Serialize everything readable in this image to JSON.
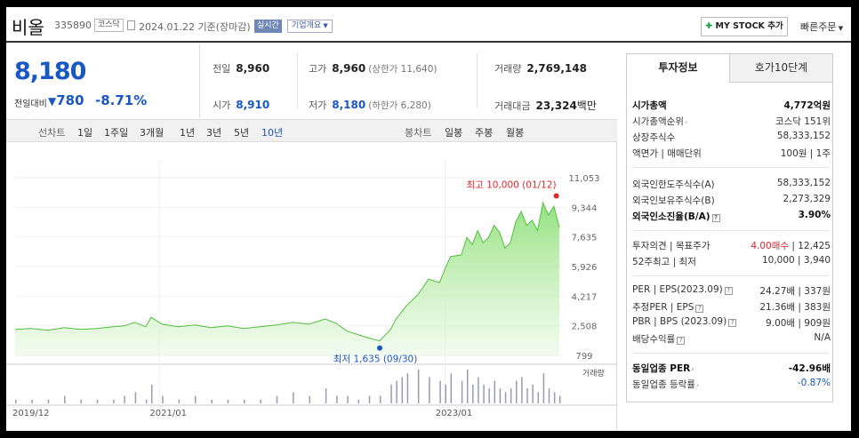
{
  "header": {
    "name": "비올",
    "code": "335890",
    "market_badge": "코스닥",
    "date": "2024.01.22 기준(장마감)",
    "realtime_label": "실시간",
    "company_info_label": "기업개요",
    "my_stock_label": "MY STOCK 추가",
    "quick_order_label": "빠른주문"
  },
  "price": {
    "current": "8,180",
    "vs_label": "전일대비",
    "change": "780",
    "change_pct": "-8.71%"
  },
  "stats": {
    "prev_label": "전일",
    "prev": "8,960",
    "high_label": "고가",
    "high": "8,960",
    "upper_limit": "(상한가 11,640)",
    "volume_label": "거래량",
    "volume": "2,769,148",
    "open_label": "시가",
    "open": "8,910",
    "low_label": "저가",
    "low": "8,180",
    "lower_limit": "(하한가 6,280)",
    "amount_label": "거래대금",
    "amount": "23,324",
    "amount_unit": "백만"
  },
  "period_bar": {
    "line_label": "선차트",
    "periods": [
      "1일",
      "1주일",
      "3개월",
      "1년",
      "3년",
      "5년",
      "10년"
    ],
    "active": "10년",
    "candle_label": "봉차트",
    "candles": [
      "일봉",
      "주봉",
      "월봉"
    ]
  },
  "chart_data": {
    "type": "area",
    "yticks": [
      "11,053",
      "9,344",
      "7,635",
      "5,926",
      "4,217",
      "2,508",
      "799"
    ],
    "ylim": [
      799,
      11053
    ],
    "xticks": [
      "2019/12",
      "2021/01",
      "2023/01"
    ],
    "max_label": "최고 10,000 (01/12)",
    "min_label": "최저 1,635 (09/30)",
    "volume_label": "거래량",
    "x": [
      0,
      0.03,
      0.06,
      0.09,
      0.12,
      0.15,
      0.18,
      0.2,
      0.22,
      0.24,
      0.25,
      0.27,
      0.3,
      0.33,
      0.36,
      0.39,
      0.42,
      0.45,
      0.48,
      0.51,
      0.54,
      0.57,
      0.59,
      0.61,
      0.63,
      0.65,
      0.67,
      0.69,
      0.7,
      0.71,
      0.72,
      0.74,
      0.76,
      0.78,
      0.79,
      0.8,
      0.82,
      0.83,
      0.84,
      0.85,
      0.86,
      0.87,
      0.88,
      0.89,
      0.9,
      0.91,
      0.92,
      0.93,
      0.94,
      0.95,
      0.96,
      0.97,
      0.98,
      0.99,
      1.0
    ],
    "values": [
      2300,
      2350,
      2250,
      2400,
      2300,
      2350,
      2450,
      2500,
      2700,
      2450,
      3000,
      2600,
      2450,
      2550,
      2400,
      2500,
      2350,
      2450,
      2550,
      2700,
      2600,
      2900,
      2650,
      2200,
      2000,
      1800,
      1635,
      2300,
      2900,
      3300,
      3700,
      4300,
      5200,
      5000,
      5800,
      6500,
      6600,
      7600,
      7200,
      8000,
      7300,
      7600,
      8300,
      7900,
      7000,
      7300,
      8500,
      9100,
      8300,
      8600,
      8000,
      9600,
      8900,
      9400,
      8180
    ],
    "volume": [
      1,
      1,
      1,
      2,
      1,
      1,
      1,
      2,
      3,
      1,
      5,
      2,
      1,
      2,
      1,
      1,
      1,
      1,
      2,
      3,
      2,
      4,
      2,
      2,
      1,
      2,
      2,
      5,
      6,
      7,
      8,
      9,
      7,
      6,
      5,
      8,
      6,
      9,
      5,
      7,
      5,
      4,
      6,
      4,
      3,
      4,
      6,
      7,
      4,
      5,
      3,
      8,
      4,
      3,
      2
    ]
  },
  "tabs": {
    "active": "투자정보",
    "inactive": "호가10단계"
  },
  "info": {
    "market_cap_label": "시가총액",
    "market_cap": "4,772억원",
    "rank_label": "시가총액순위",
    "rank": "코스닥 151위",
    "shares_label": "상장주식수",
    "shares": "58,333,152",
    "par_label": "액면가 | 매매단위",
    "par": "100원 | 1주",
    "foreign_limit_label": "외국인한도주식수(A)",
    "foreign_limit": "58,333,152",
    "foreign_hold_label": "외국인보유주식수(B)",
    "foreign_hold": "2,273,329",
    "foreign_ratio_label": "외국인소진율(B/A)",
    "foreign_ratio": "3.90%",
    "opinion_label": "투자의견 | 목표주가",
    "opinion": "4.00매수",
    "target": "12,425",
    "w52_label": "52주최고 | 최저",
    "w52": "10,000 | 3,940",
    "per_label": "PER | EPS(2023.09)",
    "per": "24.27배 | 337원",
    "est_per_label": "추정PER | EPS",
    "est_per": "21.36배 | 383원",
    "pbr_label": "PBR | BPS (2023.09)",
    "pbr": "9.00배 | 909원",
    "div_label": "배당수익률",
    "div": "N/A",
    "ind_per_label": "동일업종 PER",
    "ind_per": "-42.96배",
    "ind_rate_label": "동일업종 등락률",
    "ind_rate": "-0.87%"
  }
}
